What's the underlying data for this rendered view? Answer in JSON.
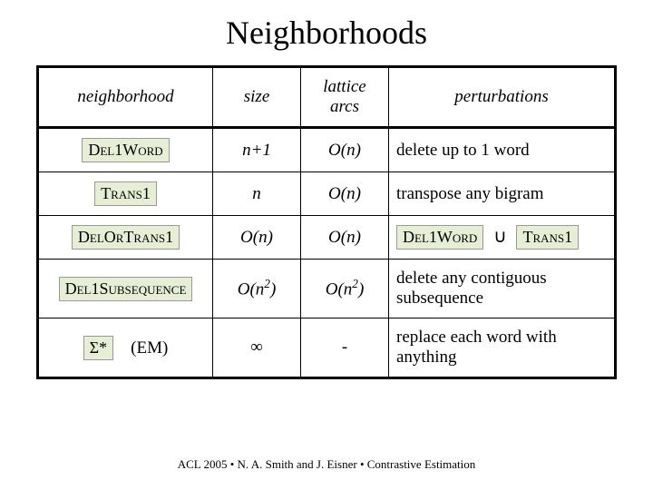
{
  "title": "Neighborhoods",
  "headers": {
    "neighborhood": "neighborhood",
    "size": "size",
    "lattice_arcs": "lattice arcs",
    "perturbations": "perturbations"
  },
  "rows": {
    "del1word": {
      "name": "Del1Word",
      "size": "n+1",
      "arcs": "O(n)",
      "pert": "delete up to 1 word"
    },
    "trans1": {
      "name": "Trans1",
      "size": "n",
      "arcs": "O(n)",
      "pert": "transpose any bigram"
    },
    "delortrans1": {
      "name": "DelOrTrans1",
      "size": "O(n)",
      "arcs": "O(n)",
      "pert_chip1": "Del1Word",
      "pert_union": "∪",
      "pert_chip2": "Trans1"
    },
    "del1subseq": {
      "name": "Del1Subsequence",
      "size_html": "O(n²)",
      "arcs_html": "O(n²)",
      "pert": "delete any contiguous subsequence"
    },
    "sigmastar": {
      "name_chip": "Σ*",
      "name_em": "(EM)",
      "size": "∞",
      "arcs": "-",
      "pert": "replace each word with anything"
    }
  },
  "footer": "ACL 2005  •  N. A. Smith and J. Eisner  •  Contrastive Estimation",
  "colors": {
    "chip_bg": "#e6efd5",
    "chip_border": "#999999",
    "table_border": "#000000",
    "background": "#ffffff"
  },
  "column_widths": {
    "neighborhood": 175,
    "size": 80,
    "arcs": 80
  }
}
